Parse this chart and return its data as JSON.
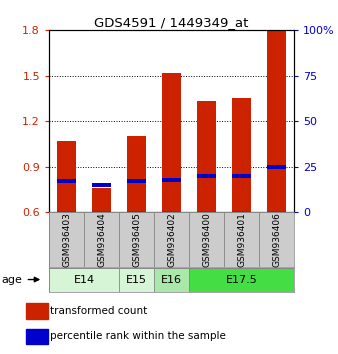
{
  "title": "GDS4591 / 1449349_at",
  "samples": [
    "GSM936403",
    "GSM936404",
    "GSM936405",
    "GSM936402",
    "GSM936400",
    "GSM936401",
    "GSM936406"
  ],
  "red_values": [
    1.07,
    0.76,
    1.1,
    1.52,
    1.33,
    1.35,
    1.82
  ],
  "blue_values": [
    17,
    15,
    17,
    18,
    20,
    20,
    25
  ],
  "ylim_left": [
    0.6,
    1.8
  ],
  "ylim_right": [
    0,
    100
  ],
  "yticks_left": [
    0.6,
    0.9,
    1.2,
    1.5,
    1.8
  ],
  "yticks_right": [
    0,
    25,
    50,
    75,
    100
  ],
  "age_groups": [
    {
      "label": "E14",
      "samples": [
        0,
        1
      ],
      "color": "#d6f5d6"
    },
    {
      "label": "E15",
      "samples": [
        2
      ],
      "color": "#d6f5d6"
    },
    {
      "label": "E16",
      "samples": [
        3
      ],
      "color": "#aae8aa"
    },
    {
      "label": "E17.5",
      "samples": [
        4,
        5,
        6
      ],
      "color": "#44dd44"
    }
  ],
  "bar_width": 0.55,
  "red_color": "#cc2200",
  "blue_color": "#0000cc",
  "bg_color": "#cccccc",
  "legend_red": "transformed count",
  "legend_blue": "percentile rank within the sample",
  "ylabel_left_color": "#cc2200",
  "ylabel_right_color": "#0000cc",
  "age_label": "age"
}
